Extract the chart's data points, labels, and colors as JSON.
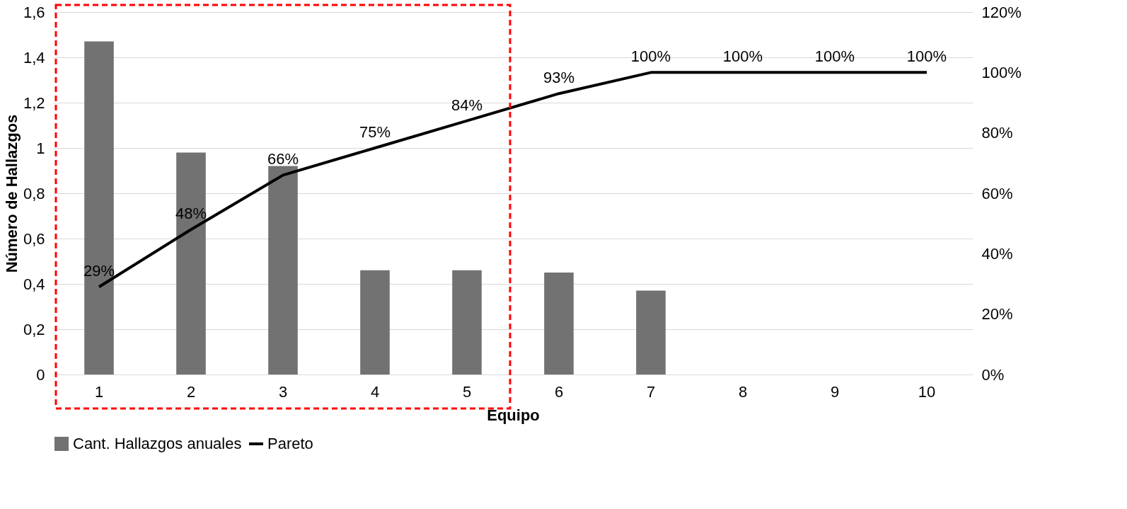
{
  "chart_data": {
    "type": "bar",
    "xlabel": "Equipo",
    "ylabel": "Número de Hallazgos",
    "categories": [
      "1",
      "2",
      "3",
      "4",
      "5",
      "6",
      "7",
      "8",
      "9",
      "10"
    ],
    "series": [
      {
        "name": "Cant. Hallazgos anuales",
        "color": "#727272",
        "values": [
          1.47,
          0.98,
          0.92,
          0.46,
          0.46,
          0.45,
          0.37,
          0,
          0,
          0
        ]
      },
      {
        "name": "Pareto",
        "type": "line",
        "axis": "y2",
        "color": "#000000",
        "values": [
          29,
          48,
          66,
          75,
          84,
          93,
          100,
          100,
          100,
          100
        ],
        "value_labels": [
          "29%",
          "48%",
          "66%",
          "75%",
          "84%",
          "93%",
          "100%",
          "100%",
          "100%",
          "100%"
        ]
      }
    ],
    "ylim": [
      0,
      1.6
    ],
    "yticks": [
      0,
      {
        "value": 0.2,
        "label": "0,2"
      },
      {
        "value": 0.4,
        "label": "0,4"
      },
      {
        "value": 0.6,
        "label": "0,6"
      },
      {
        "value": 0.8,
        "label": "0,8"
      },
      1,
      {
        "value": 1.2,
        "label": "1,2"
      },
      {
        "value": 1.4,
        "label": "1,4"
      },
      {
        "value": 1.6,
        "label": "1,6"
      }
    ],
    "y2lim": [
      0,
      120
    ],
    "y2ticks": [
      {
        "value": 0,
        "label": "0%"
      },
      {
        "value": 20,
        "label": "20%"
      },
      {
        "value": 40,
        "label": "40%"
      },
      {
        "value": 60,
        "label": "60%"
      },
      {
        "value": 80,
        "label": "80%"
      },
      {
        "value": 100,
        "label": "100%"
      },
      {
        "value": 120,
        "label": "120%"
      }
    ],
    "grid": "y",
    "legend": "bottom",
    "marker": "none",
    "line_style": "solid"
  }
}
